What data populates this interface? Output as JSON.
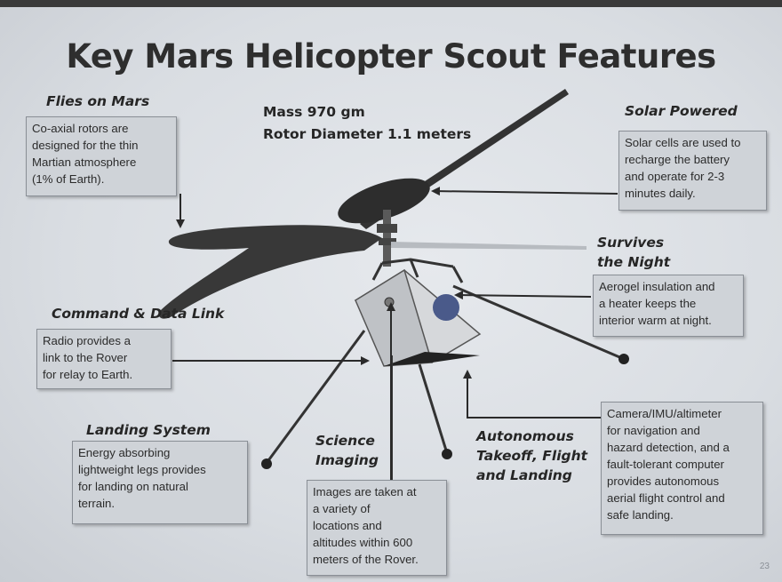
{
  "title": "Key Mars Helicopter Scout Features",
  "stats": {
    "mass": "Mass  970 gm",
    "rotor": "Rotor Diameter 1.1 meters"
  },
  "features": {
    "flies": {
      "label": "Flies on Mars",
      "lines": [
        "Co-axial rotors are",
        "designed for the thin",
        "Martian atmosphere",
        "(1% of Earth)."
      ]
    },
    "solar": {
      "label": "Solar Powered",
      "lines": [
        "Solar cells are used to",
        "recharge the battery",
        "and operate for 2-3",
        "minutes daily."
      ]
    },
    "night": {
      "label_lines": [
        "Survives",
        "the Night"
      ],
      "lines": [
        "Aerogel insulation and",
        "a heater keeps the",
        "interior warm at night."
      ]
    },
    "command": {
      "label": "Command & Data Link",
      "lines": [
        "Radio provides a",
        "link to the Rover",
        "for relay to Earth."
      ]
    },
    "landing": {
      "label": "Landing System",
      "lines": [
        "Energy absorbing",
        "lightweight legs provides",
        "for landing on natural",
        "terrain."
      ]
    },
    "science": {
      "label_lines": [
        "Science",
        "Imaging"
      ],
      "lines": [
        "Images are taken at",
        "a variety of",
        "locations and",
        "altitudes within 600",
        "meters of the Rover."
      ]
    },
    "autonomous": {
      "label_lines": [
        "Autonomous",
        "Takeoff, Flight",
        "and Landing"
      ],
      "lines": [
        "Camera/IMU/altimeter",
        "for navigation and",
        "hazard detection, and a",
        "fault-tolerant computer",
        "provides autonomous",
        "aerial flight control and",
        "safe landing."
      ]
    }
  },
  "page_number": "23",
  "colors": {
    "text": "#2b2b2b",
    "box_fill": "#cfd3d8",
    "helicopter": "#333333"
  }
}
